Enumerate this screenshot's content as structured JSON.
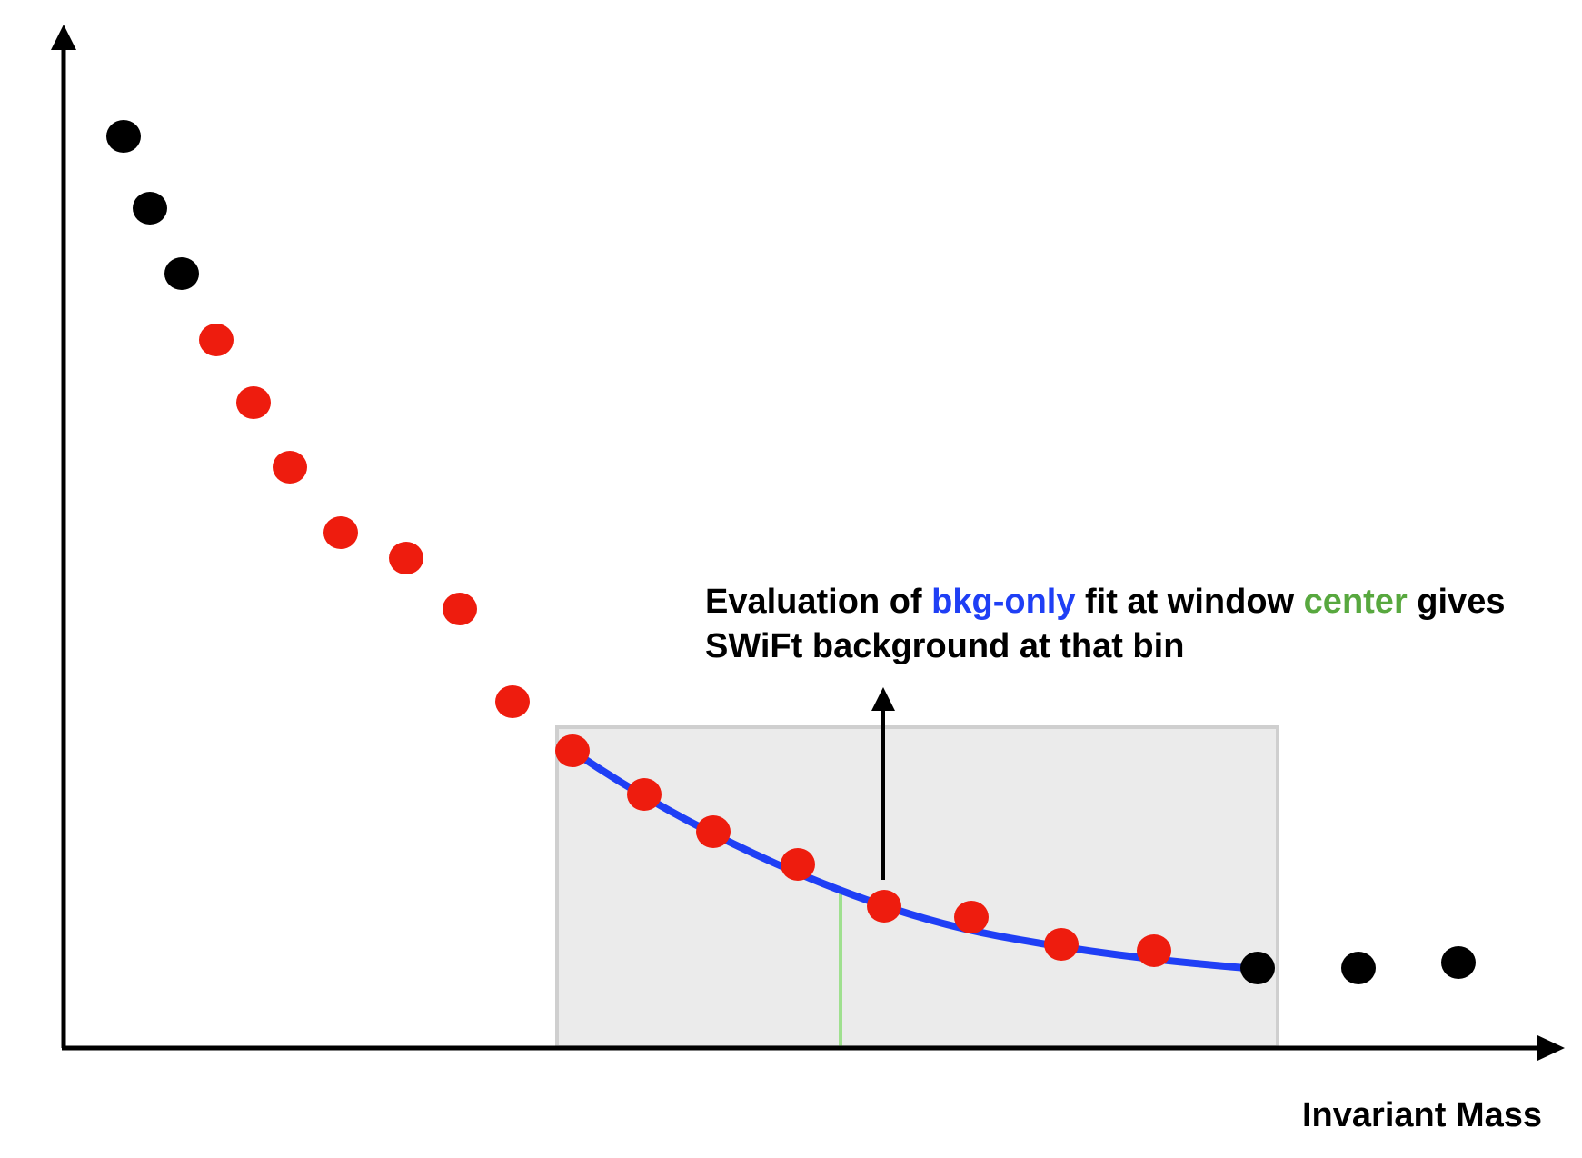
{
  "annotation": {
    "line1": {
      "part1": "Evaluation of ",
      "fit_name": "bkg-only",
      "part2": " fit at window ",
      "center_word": "center",
      "part3": " gives"
    },
    "line2": "SWiFt background at that bin"
  },
  "x_axis_label": "Invariant Mass",
  "colors": {
    "axis": "#000000",
    "fit_curve": "#1f3ff5",
    "in_window_point": "#ee1c0e",
    "out_window_point": "#000000",
    "window_fill": "#ebebeb",
    "window_border": "#cfcfcf",
    "center_line": "#9fe08f",
    "fit_text": "#1f3ff5",
    "center_text": "#58a83f"
  },
  "icons": {
    "y_axis": "arrow-up",
    "x_axis": "arrow-right",
    "annotation_pointer": "arrow-up"
  }
}
